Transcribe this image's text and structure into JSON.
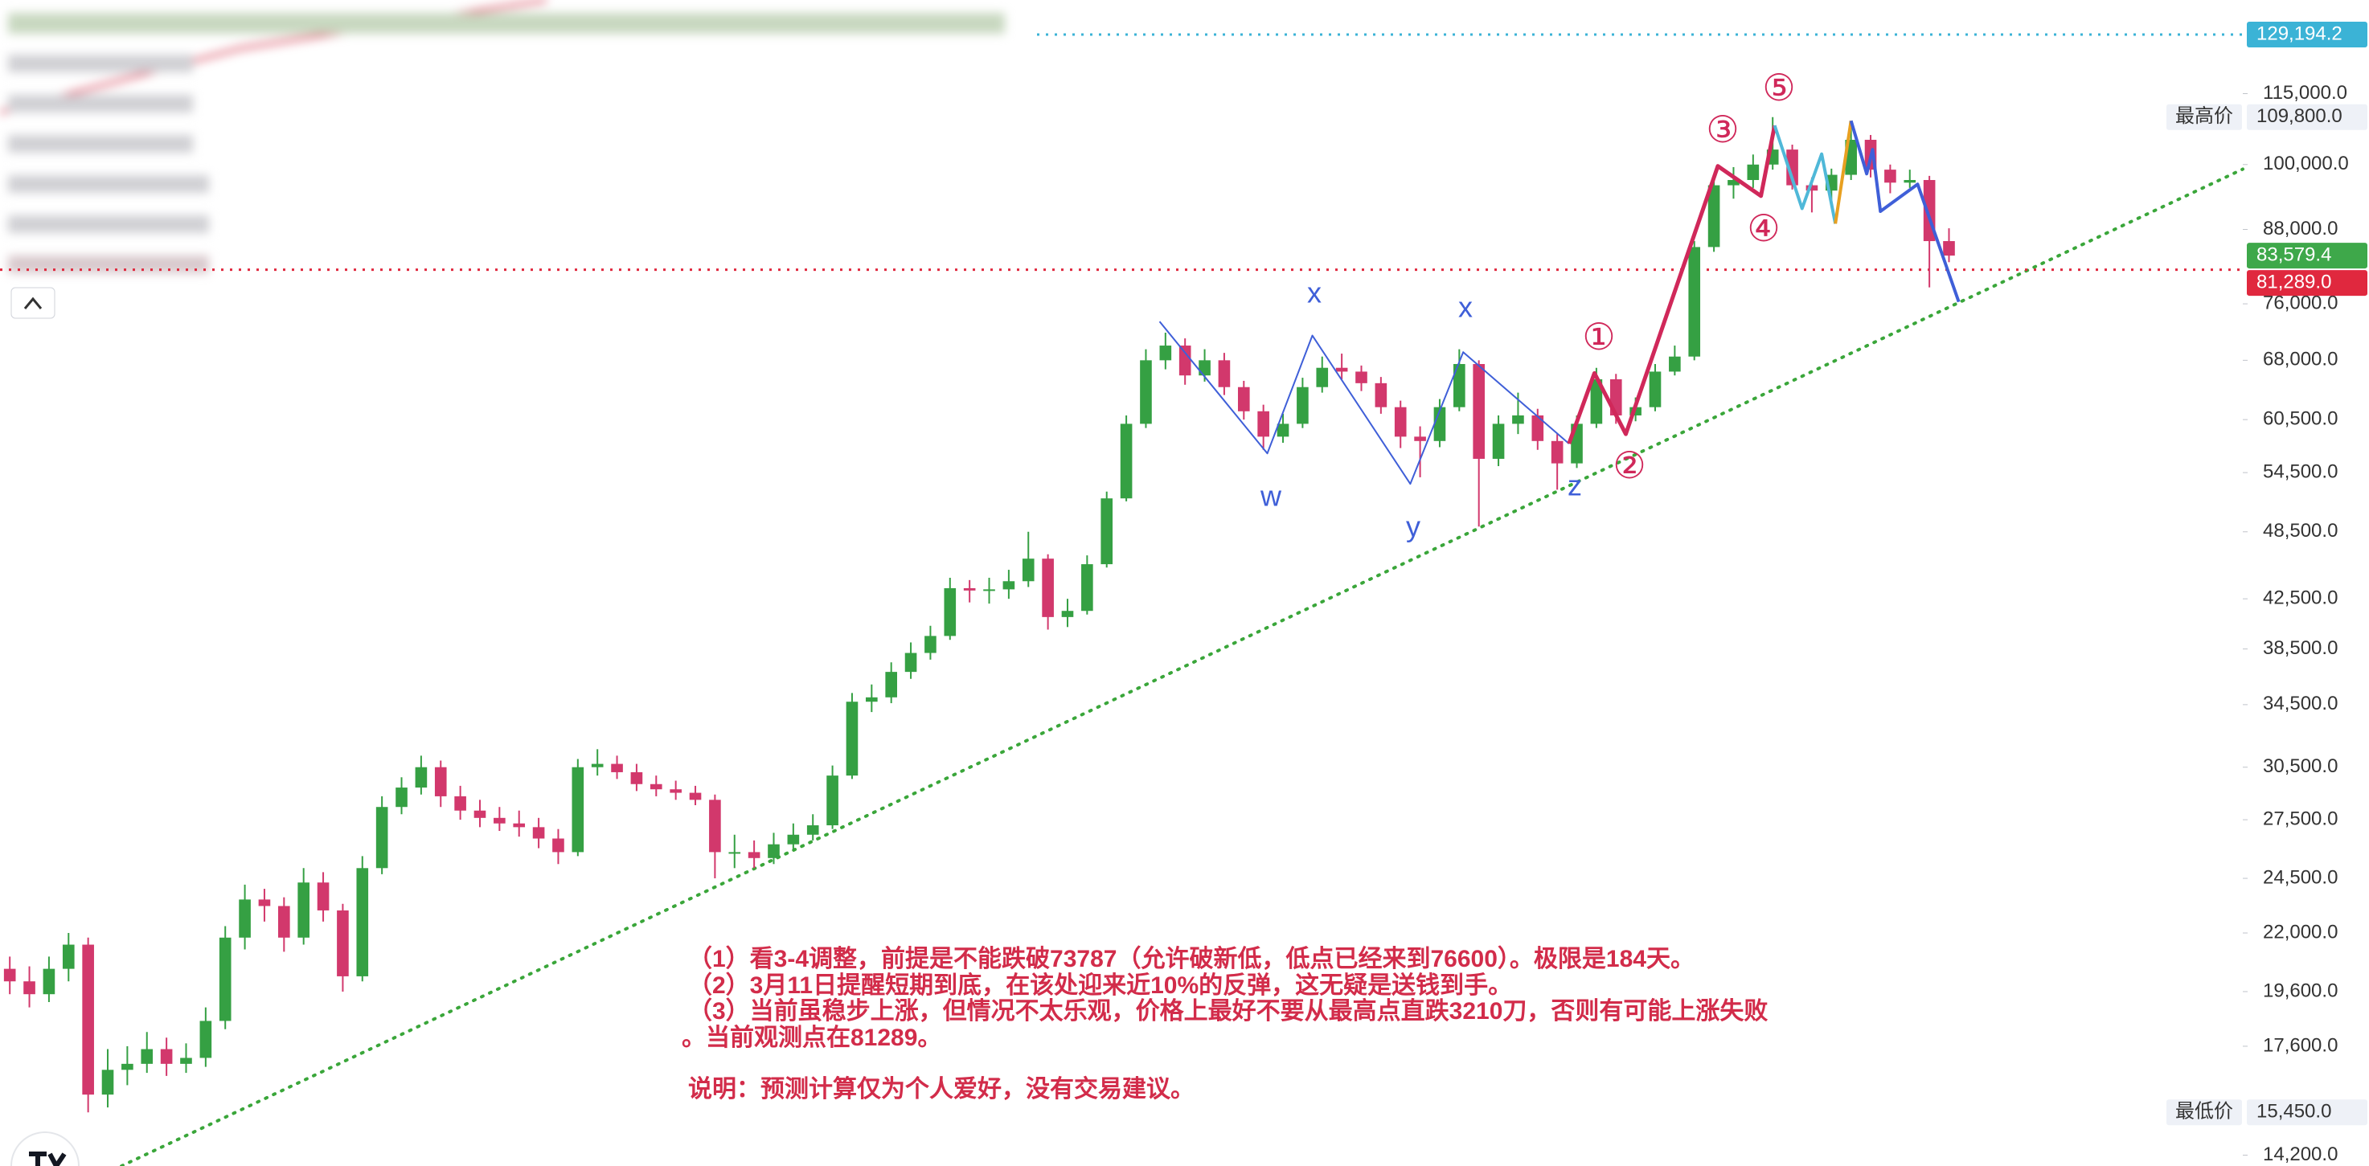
{
  "chart_data": {
    "type": "candlestick",
    "log_scale": true,
    "xlim": [
      -0.5,
      114
    ],
    "ylim": [
      13900,
      138300
    ],
    "yticks": [
      {
        "value": 115000,
        "label": "115,000.0"
      },
      {
        "value": 100000,
        "label": "100,000.0"
      },
      {
        "value": 88000,
        "label": "88,000.0"
      },
      {
        "value": 76000,
        "label": "76,000.0"
      },
      {
        "value": 68000,
        "label": "68,000.0"
      },
      {
        "value": 60500,
        "label": "60,500.0"
      },
      {
        "value": 54500,
        "label": "54,500.0"
      },
      {
        "value": 48500,
        "label": "48,500.0"
      },
      {
        "value": 42500,
        "label": "42,500.0"
      },
      {
        "value": 38500,
        "label": "38,500.0"
      },
      {
        "value": 34500,
        "label": "34,500.0"
      },
      {
        "value": 30500,
        "label": "30,500.0"
      },
      {
        "value": 27500,
        "label": "27,500.0"
      },
      {
        "value": 24500,
        "label": "24,500.0"
      },
      {
        "value": 22000,
        "label": "22,000.0"
      },
      {
        "value": 19600,
        "label": "19,600.0"
      },
      {
        "value": 17600,
        "label": "17,600.0"
      },
      {
        "value": 14200,
        "label": "14,200.0"
      }
    ],
    "up_color": "#35a043",
    "down_color": "#d2386c",
    "candles": [
      [
        20500,
        21000,
        19500,
        20000
      ],
      [
        20000,
        20600,
        19000,
        19500
      ],
      [
        19500,
        21000,
        19200,
        20500
      ],
      [
        20500,
        22000,
        20000,
        21500
      ],
      [
        21500,
        21800,
        15450,
        16000
      ],
      [
        16000,
        17500,
        15600,
        16800
      ],
      [
        16800,
        17600,
        16300,
        17000
      ],
      [
        17000,
        18100,
        16700,
        17500
      ],
      [
        17500,
        17900,
        16600,
        17000
      ],
      [
        17000,
        17700,
        16700,
        17200
      ],
      [
        17200,
        19000,
        16900,
        18500
      ],
      [
        18500,
        22300,
        18200,
        21800
      ],
      [
        21800,
        24200,
        21300,
        23500
      ],
      [
        23500,
        24000,
        22500,
        23200
      ],
      [
        23200,
        23600,
        21200,
        21800
      ],
      [
        21800,
        25000,
        21500,
        24300
      ],
      [
        24300,
        24800,
        22500,
        23000
      ],
      [
        23000,
        23300,
        19600,
        20200
      ],
      [
        20200,
        25600,
        20000,
        25000
      ],
      [
        25000,
        28800,
        24700,
        28200
      ],
      [
        28200,
        29900,
        27800,
        29300
      ],
      [
        29300,
        31200,
        28900,
        30500
      ],
      [
        30500,
        30900,
        28200,
        28800
      ],
      [
        28800,
        29400,
        27500,
        28000
      ],
      [
        28000,
        28600,
        27100,
        27600
      ],
      [
        27600,
        28200,
        26900,
        27300
      ],
      [
        27300,
        28000,
        26600,
        27100
      ],
      [
        27100,
        27600,
        26000,
        26500
      ],
      [
        26500,
        27000,
        25200,
        25800
      ],
      [
        25800,
        31000,
        25600,
        30500
      ],
      [
        30500,
        31600,
        30000,
        30700
      ],
      [
        30700,
        31200,
        29800,
        30200
      ],
      [
        30200,
        30700,
        29100,
        29500
      ],
      [
        29500,
        30000,
        28800,
        29200
      ],
      [
        29200,
        29700,
        28600,
        29000
      ],
      [
        29000,
        29400,
        28300,
        28600
      ],
      [
        28600,
        28900,
        24500,
        25800
      ],
      [
        25800,
        26700,
        25000,
        25800
      ],
      [
        25800,
        26400,
        25000,
        25500
      ],
      [
        25500,
        26800,
        25200,
        26200
      ],
      [
        26200,
        27300,
        25900,
        26700
      ],
      [
        26700,
        27800,
        26400,
        27200
      ],
      [
        27200,
        30600,
        27000,
        30000
      ],
      [
        30000,
        35300,
        29800,
        34700
      ],
      [
        34700,
        35900,
        34000,
        35000
      ],
      [
        35000,
        37500,
        34600,
        36800
      ],
      [
        36800,
        39000,
        36300,
        38200
      ],
      [
        38200,
        40300,
        37700,
        39500
      ],
      [
        39500,
        44300,
        39200,
        43400
      ],
      [
        43400,
        44100,
        42200,
        43200
      ],
      [
        43200,
        44300,
        42100,
        43300
      ],
      [
        43300,
        45000,
        42500,
        44000
      ],
      [
        44000,
        48500,
        43500,
        46000
      ],
      [
        46000,
        46400,
        40000,
        41000
      ],
      [
        41000,
        42500,
        40200,
        41500
      ],
      [
        41500,
        46300,
        41200,
        45500
      ],
      [
        45500,
        52500,
        45200,
        51800
      ],
      [
        51800,
        61000,
        51500,
        60000
      ],
      [
        60000,
        69500,
        59500,
        68000
      ],
      [
        68000,
        71800,
        66800,
        70000
      ],
      [
        70000,
        71000,
        64800,
        66000
      ],
      [
        66000,
        69500,
        65200,
        68000
      ],
      [
        68000,
        69000,
        63500,
        64500
      ],
      [
        64500,
        65300,
        60500,
        61500
      ],
      [
        61500,
        62300,
        57000,
        58500
      ],
      [
        58500,
        61200,
        57800,
        60000
      ],
      [
        60000,
        65700,
        59500,
        64500
      ],
      [
        64500,
        68500,
        63800,
        67000
      ],
      [
        67000,
        68900,
        65500,
        66500
      ],
      [
        66500,
        67300,
        64000,
        65000
      ],
      [
        65000,
        65800,
        61200,
        62000
      ],
      [
        62000,
        62800,
        57200,
        58500
      ],
      [
        58500,
        59700,
        54000,
        58000
      ],
      [
        58000,
        63000,
        57300,
        62000
      ],
      [
        62000,
        69500,
        61500,
        67500
      ],
      [
        67500,
        68000,
        49000,
        56000
      ],
      [
        56000,
        61000,
        55200,
        60000
      ],
      [
        60000,
        63800,
        58800,
        61000
      ],
      [
        61000,
        61800,
        57000,
        58000
      ],
      [
        58000,
        58800,
        52700,
        55500
      ],
      [
        55500,
        61000,
        55000,
        60000
      ],
      [
        60000,
        67000,
        59500,
        65500
      ],
      [
        65500,
        66200,
        60000,
        61000
      ],
      [
        61000,
        63200,
        60300,
        62000
      ],
      [
        62000,
        67500,
        61500,
        66500
      ],
      [
        66500,
        70000,
        66000,
        68500
      ],
      [
        68500,
        86000,
        68000,
        85000
      ],
      [
        85000,
        97500,
        84200,
        96000
      ],
      [
        96000,
        99500,
        93500,
        97000
      ],
      [
        97000,
        102000,
        95500,
        100000
      ],
      [
        100000,
        109800,
        99000,
        103000
      ],
      [
        103000,
        104000,
        95200,
        96000
      ],
      [
        96000,
        97500,
        91000,
        95000
      ],
      [
        95000,
        99200,
        93000,
        98000
      ],
      [
        98000,
        109000,
        97000,
        105000
      ],
      [
        105000,
        106000,
        97500,
        99000
      ],
      [
        99000,
        100000,
        94500,
        96500
      ],
      [
        96500,
        99000,
        95500,
        97000
      ],
      [
        97000,
        97800,
        78500,
        86000
      ],
      [
        86000,
        88200,
        82500,
        83579.4
      ]
    ],
    "last_price": {
      "value": 83579.4,
      "label": "83,579.4",
      "color": "#3ea84a"
    },
    "price_lines": [
      {
        "value": 129194.2,
        "label": "129,194.2",
        "color": "#3bb3d6"
      },
      {
        "value": 81289,
        "label": "81,289.0",
        "color": "#e0283e"
      }
    ],
    "extremes": [
      {
        "name": "最高价",
        "value": 109800,
        "label": "109,800.0"
      },
      {
        "name": "最低价",
        "value": 15450,
        "label": "15,450.0"
      }
    ],
    "trend_line": {
      "color": "#3aa63a",
      "x": [
        5.7,
        114
      ],
      "y": [
        13900,
        99100
      ]
    },
    "wave_lines": [
      {
        "color": "#3f5fd8",
        "width": 2,
        "x": [
          58.7,
          64.2,
          66.5,
          71.5,
          74.2,
          79.6
        ],
        "y": [
          73400,
          56600,
          71400,
          53300,
          69100,
          57700
        ]
      },
      {
        "color": "#d0285a",
        "width": 5,
        "x": [
          79.6,
          80.9,
          82.5,
          87.2,
          89.4,
          90.1
        ],
        "y": [
          57700,
          66300,
          58800,
          99700,
          94000,
          108000
        ]
      },
      {
        "color": "#4fb8d8",
        "width": 4,
        "x": [
          90.1,
          91.5,
          92.5,
          93.2
        ],
        "y": [
          108000,
          91700,
          102100,
          89000
        ]
      },
      {
        "color": "#e8a020",
        "width": 4,
        "x": [
          93.2,
          94
        ],
        "y": [
          89000,
          109000
        ]
      },
      {
        "color": "#3f5fd8",
        "width": 4,
        "x": [
          94,
          94.8,
          95.1,
          95.5,
          97.4,
          99.5
        ],
        "y": [
          109000,
          98200,
          103000,
          91200,
          96200,
          76300
        ]
      }
    ],
    "wave_labels": [
      {
        "text": "x",
        "color": "#3f5fd8"
      },
      {
        "text": "x",
        "color": "#3f5fd8"
      },
      {
        "text": "w",
        "color": "#3f5fd8"
      },
      {
        "text": "y",
        "color": "#3f5fd8"
      },
      {
        "text": "z",
        "color": "#3f5fd8"
      },
      {
        "text": "①",
        "color": "#d0285a"
      },
      {
        "text": "②",
        "color": "#d0285a"
      },
      {
        "text": "③",
        "color": "#d0285a"
      },
      {
        "text": "④",
        "color": "#d0285a"
      },
      {
        "text": "⑤",
        "color": "#d0285a"
      }
    ],
    "notes": [
      "（1）看3-4调整，前提是不能跌破73787（允许破新低，低点已经来到76600）。极限是184天。",
      "（2）3月11日提醒短期到底，在该处迎来近10%的反弹，这无疑是送钱到手。",
      "（3）当前虽稳步上涨，但情况不太乐观，价格上最好不要从最高点直跌3210刀，否则有可能上涨失败",
      "。当前观测点在81289。",
      "说明：预测计算仅为个人爱好，没有交易建议。"
    ]
  }
}
